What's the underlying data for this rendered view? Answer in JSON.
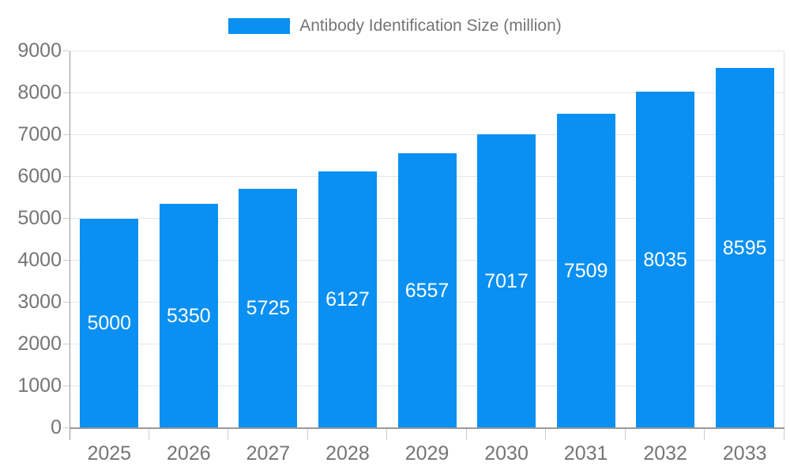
{
  "legend": {
    "items": [
      {
        "label": "Antibody Identification Size (million)",
        "color": "#0a90f2"
      }
    ],
    "position": "top-center"
  },
  "chart_data": {
    "type": "bar",
    "title": "Antibody Identification Size (million)",
    "categories": [
      "2025",
      "2026",
      "2027",
      "2028",
      "2029",
      "2030",
      "2031",
      "2032",
      "2033"
    ],
    "series": [
      {
        "name": "Antibody Identification Size (million)",
        "values": [
          5000,
          5350,
          5725,
          6127,
          6557,
          7017,
          7509,
          8035,
          8595
        ],
        "color": "#0a90f2"
      }
    ],
    "xlabel": "",
    "ylabel": "",
    "ylim": [
      0,
      9000
    ],
    "yticks": [
      0,
      1000,
      2000,
      3000,
      4000,
      5000,
      6000,
      7000,
      8000,
      9000
    ],
    "grid": true,
    "legend_position": "top",
    "value_labels": {
      "show": true,
      "color": "#ffffff",
      "position": "center-of-bar"
    }
  },
  "colors": {
    "bar": "#0a90f2",
    "grid_line": "#e6e6e6",
    "axis_line": "#999999",
    "tick": "#cccccc",
    "label_text": "#757575",
    "value_label": "#ffffff",
    "background": "#ffffff"
  }
}
